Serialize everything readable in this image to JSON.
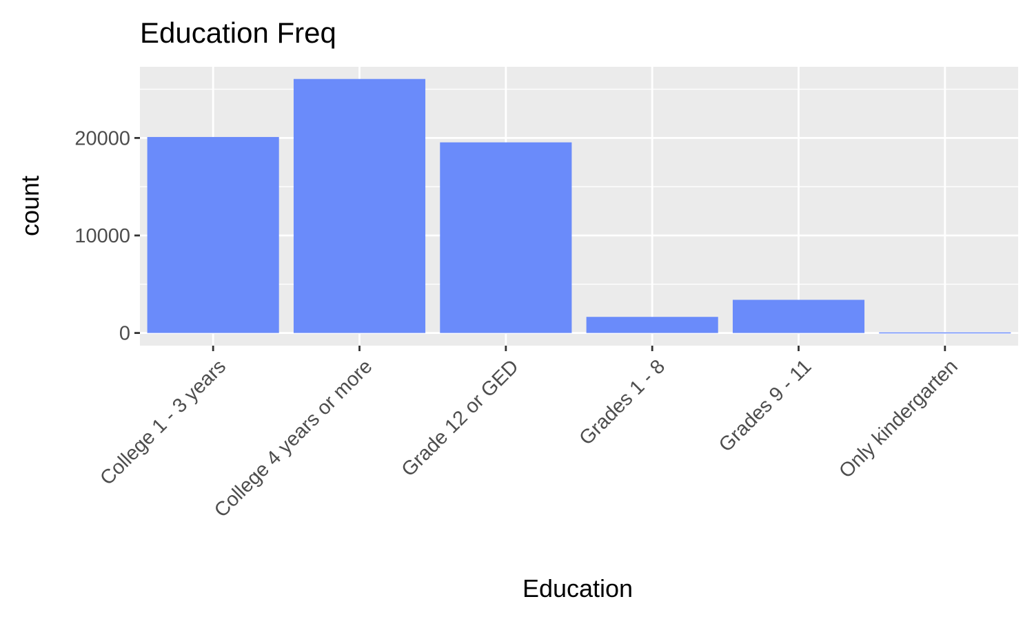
{
  "chart_data": {
    "type": "bar",
    "title": "Education Freq",
    "xlabel": "Education",
    "ylabel": "count",
    "categories": [
      "College 1 - 3 years",
      "College 4 years or more",
      "Grade 12 or GED",
      "Grades 1 - 8",
      "Grades 9 - 11",
      "Only kindergarten"
    ],
    "values": [
      20100,
      26050,
      19550,
      1650,
      3400,
      60
    ],
    "y_ticks": [
      0,
      10000,
      20000
    ],
    "ylim": [
      -1300,
      27300
    ],
    "grid": true,
    "legend": "none",
    "colors": {
      "bar": "#6a8bfa",
      "panel": "#ebebeb",
      "grid": "#ffffff",
      "tick": "#333333"
    }
  }
}
